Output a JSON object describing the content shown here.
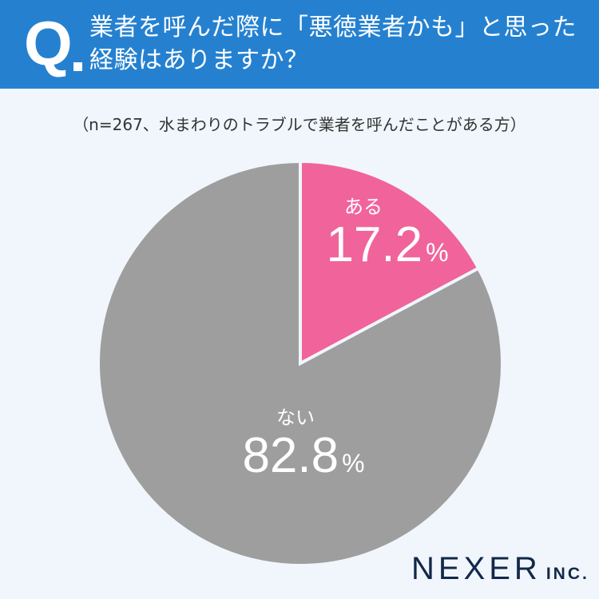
{
  "header": {
    "q_mark": "Q",
    "question_line1": "業者を呼んだ際に「悪徳業者かも」と思った",
    "question_line2": "経験はありますか？"
  },
  "subtitle": "（n=267、水まわりのトラブルで業者を呼んだことがある方）",
  "labels": {
    "yes_name": "ある",
    "yes_value": "17.2",
    "no_name": "ない",
    "no_value": "82.8",
    "pct": "%"
  },
  "logo": {
    "name": "NEXER",
    "suffix": "INC."
  },
  "chart_data": {
    "type": "pie",
    "title": "業者を呼んだ際に「悪徳業者かも」と思った経験はありますか？",
    "subtitle": "（n=267、水まわりのトラブルで業者を呼んだことがある方）",
    "categories": [
      "ある",
      "ない"
    ],
    "values": [
      17.2,
      82.8
    ],
    "unit": "%",
    "colors": [
      "#f0649b",
      "#9e9e9e"
    ],
    "start_angle": "12 o'clock, clockwise",
    "legend": "none (inline labels)"
  }
}
